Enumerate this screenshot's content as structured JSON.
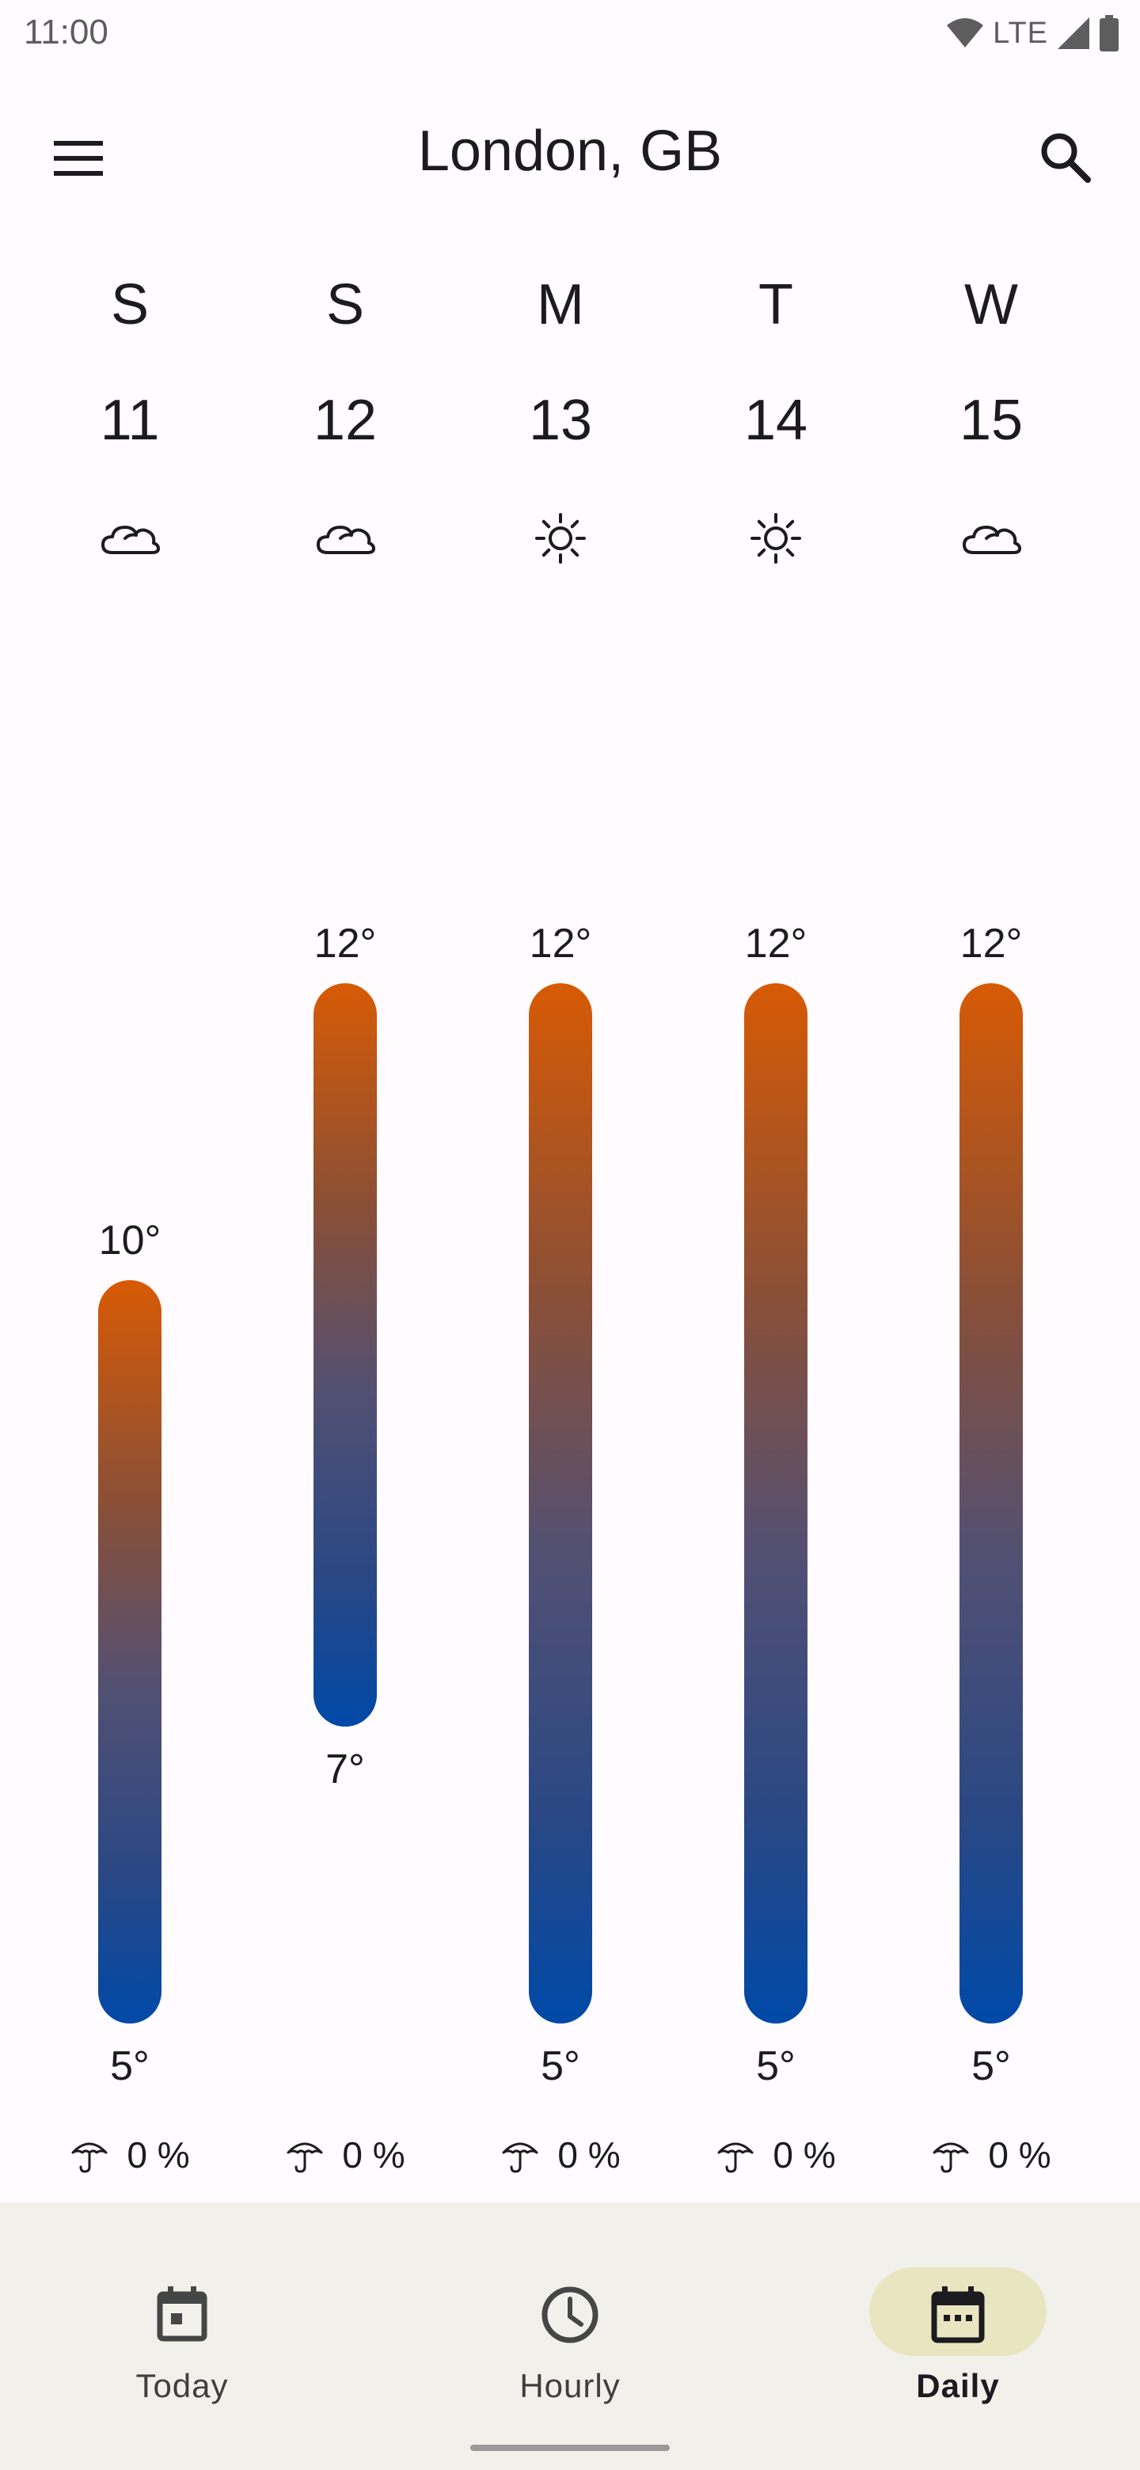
{
  "status_bar": {
    "time": "11:00",
    "network_label": "LTE",
    "icons": [
      "wifi-icon",
      "signal-icon",
      "battery-icon"
    ]
  },
  "top_bar": {
    "title": "London, GB",
    "menu_icon": "menu-icon",
    "search_icon": "search-icon"
  },
  "days": [
    {
      "letter": "S",
      "date": "11",
      "condition_icon": "cloud-icon",
      "high": "10°",
      "low": "5°",
      "high_value": 10,
      "low_value": 5,
      "precip": "0 %"
    },
    {
      "letter": "S",
      "date": "12",
      "condition_icon": "cloud-icon",
      "high": "12°",
      "low": "7°",
      "high_value": 12,
      "low_value": 7,
      "precip": "0 %"
    },
    {
      "letter": "M",
      "date": "13",
      "condition_icon": "sun-icon",
      "high": "12°",
      "low": "5°",
      "high_value": 12,
      "low_value": 5,
      "precip": "0 %"
    },
    {
      "letter": "T",
      "date": "14",
      "condition_icon": "sun-icon",
      "high": "12°",
      "low": "5°",
      "high_value": 12,
      "low_value": 5,
      "precip": "0 %"
    },
    {
      "letter": "W",
      "date": "15",
      "condition_icon": "cloud-icon",
      "high": "12°",
      "low": "5°",
      "high_value": 12,
      "low_value": 5,
      "precip": "0 %"
    }
  ],
  "bottom_nav": {
    "items": [
      {
        "label": "Today",
        "icon": "calendar-day-icon",
        "active": false
      },
      {
        "label": "Hourly",
        "icon": "clock-icon",
        "active": false
      },
      {
        "label": "Daily",
        "icon": "calendar-icon",
        "active": true
      }
    ]
  },
  "colors": {
    "background": "#fffbfe",
    "bar_top": "#d75a05",
    "bar_bottom": "#0049a8",
    "nav_background": "#f2f0eb",
    "nav_active_pill": "#e8e5c0"
  }
}
